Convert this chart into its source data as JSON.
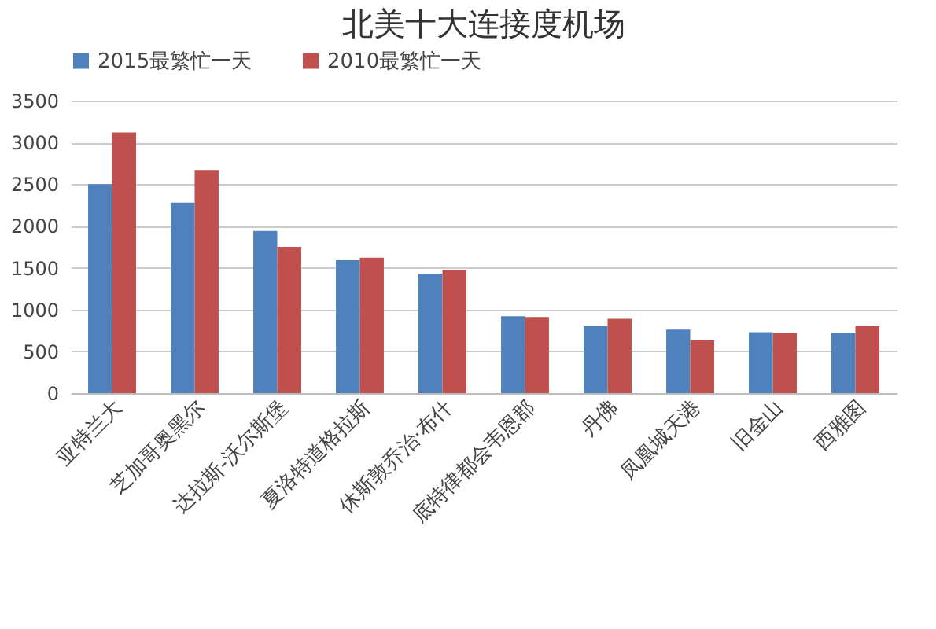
{
  "chart_data": {
    "type": "bar",
    "title": "北美十大连接度机场",
    "categories": [
      "亚特兰大",
      "芝加哥奥黑尔",
      "达拉斯-沃尔斯堡",
      "夏洛特道格拉斯",
      "休斯敦乔治·布什",
      "底特律都会韦恩郡",
      "丹佛",
      "凤凰城天港",
      "旧金山",
      "西雅图"
    ],
    "series": [
      {
        "name": "2015最繁忙一天",
        "color": "#4f81bd",
        "values": [
          2500,
          2280,
          1940,
          1590,
          1430,
          920,
          800,
          760,
          730,
          720
        ]
      },
      {
        "name": "2010最繁忙一天",
        "color": "#c0504d",
        "values": [
          3120,
          2670,
          1750,
          1620,
          1470,
          910,
          890,
          630,
          720,
          800
        ]
      }
    ],
    "ylim": [
      0,
      3500
    ],
    "yticks": [
      0,
      500,
      1000,
      1500,
      2000,
      2500,
      3000,
      3500
    ],
    "grid": "y",
    "legend": "top"
  }
}
